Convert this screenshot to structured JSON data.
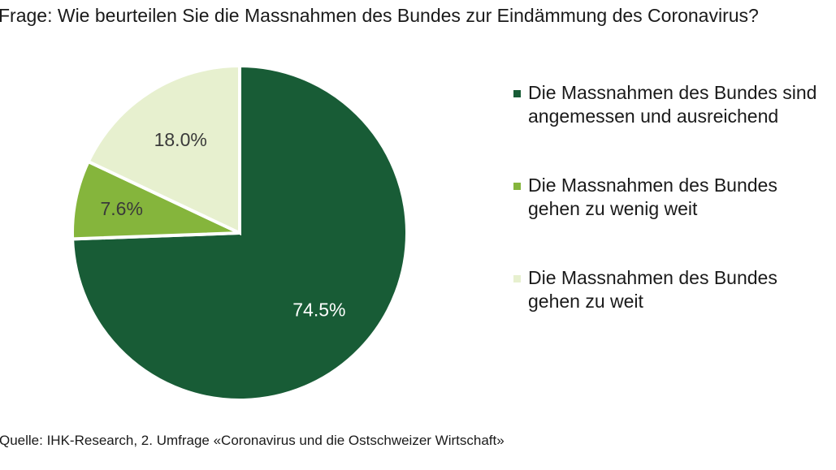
{
  "title": "Frage: Wie beurteilen Sie die Massnahmen des Bundes zur Eindämmung des Coronavirus?",
  "source": "Quelle: IHK-Research, 2. Umfrage «Coronavirus und die Ostschweizer Wirtschaft»",
  "chart_data": {
    "type": "pie",
    "title": "Frage: Wie beurteilen Sie die Massnahmen des Bundes zur Eindämmung des Coronavirus?",
    "start_angle_deg": 0,
    "direction": "clockwise",
    "legend_position": "right",
    "slices": [
      {
        "label": "Die Massnahmen des Bundes sind angemessen und ausreichend",
        "value": 74.5,
        "value_label": "74.5%",
        "color": "#185c36",
        "label_color": "#ffffff"
      },
      {
        "label": "Die Massnahmen des Bundes gehen zu wenig weit",
        "value": 7.6,
        "value_label": "7.6%",
        "color": "#85b53c",
        "label_color": "#3a3a3a"
      },
      {
        "label": "Die Massnahmen des Bundes gehen zu weit",
        "value": 18.0,
        "value_label": "18.0%",
        "color": "#e7f0cf",
        "label_color": "#3a3a3a"
      }
    ]
  }
}
